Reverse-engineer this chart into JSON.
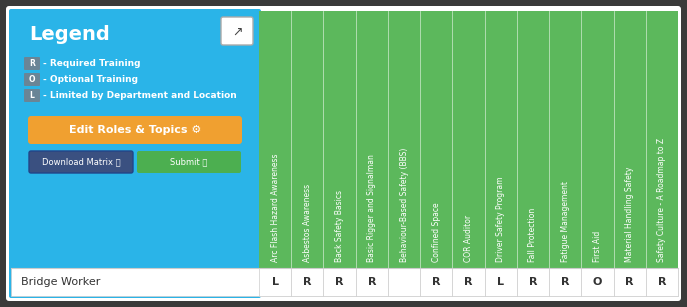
{
  "bg_color": "#2a2a2a",
  "frame_color": "#1a1a1a",
  "frame_inner_color": "#3d3d3d",
  "legend_bg": "#2ab4e8",
  "legend_title": "Legend",
  "legend_items": [
    {
      "code": "R",
      "text": "- Required Training"
    },
    {
      "code": "O",
      "text": "- Optional Training"
    },
    {
      "code": "L",
      "text": "- Limited by Department and Location"
    }
  ],
  "badge_bg": "#6a8596",
  "button_edit_bg": "#f0a030",
  "button_edit_text": "Edit Roles & Topics ⚙",
  "button_download_bg": "#3a5080",
  "button_download_text": "Download Matrix",
  "button_submit_bg": "#4caf50",
  "button_submit_text": "Submit",
  "columns_bg": "#5cb85c",
  "col_separator_color": "#ffffff",
  "columns": [
    "Arc Flash Hazard Awareness",
    "Asbestos Awareness",
    "Back Safety Basics",
    "Basic Rigger and Signalman",
    "Behaviour-Based Safety (BBS)",
    "Confined Space",
    "COR Auditor",
    "Driver Safety Program",
    "Fall Protection",
    "Fatigue Management",
    "First Aid",
    "Material Handling Safety",
    "Safety Culture - A Roadmap to Z"
  ],
  "row_label": "Bridge Worker",
  "row_values": [
    "L",
    "R",
    "R",
    "R",
    "",
    "R",
    "R",
    "L",
    "R",
    "R",
    "O",
    "R",
    "R"
  ],
  "col_text_color": "#ffffff",
  "row_bg": "#ffffff",
  "row_text_color": "#333333",
  "cell_border_color": "#cccccc",
  "figw": 6.87,
  "figh": 3.07,
  "dpi": 100
}
